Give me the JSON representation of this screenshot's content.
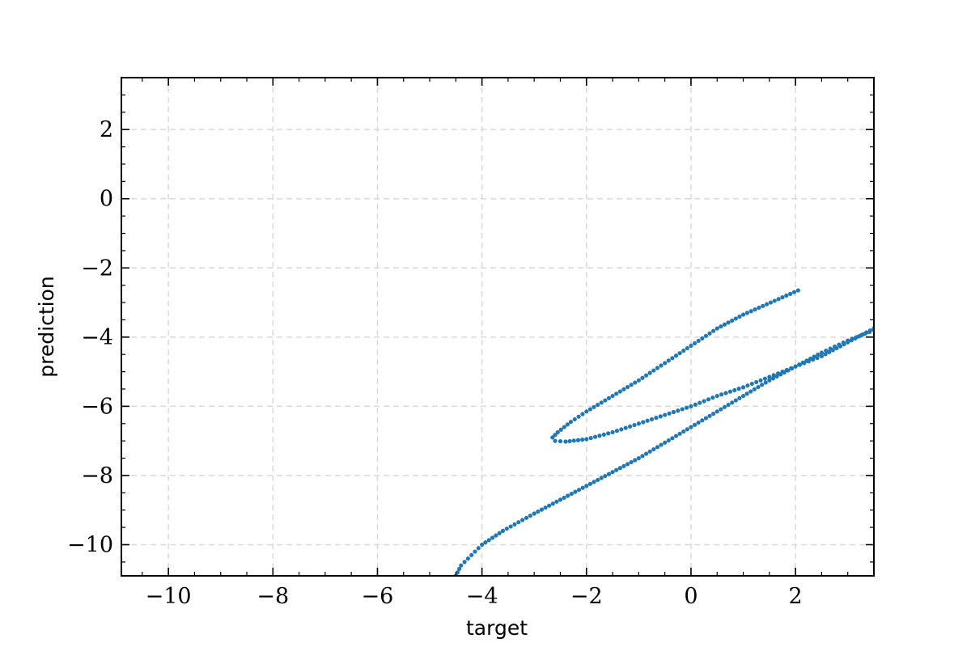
{
  "chart_data": {
    "type": "scatter",
    "title": "",
    "xlabel": "target",
    "ylabel": "prediction",
    "xlim": [
      -10.9,
      3.5
    ],
    "ylim": [
      -10.9,
      3.5
    ],
    "grid": true,
    "xticks": [
      -10,
      -8,
      -6,
      -4,
      -2,
      0,
      2
    ],
    "yticks": [
      -10,
      -8,
      -6,
      -4,
      -2,
      0,
      2
    ],
    "tick_labels_x": [
      "−10",
      "−8",
      "−6",
      "−4",
      "−2",
      "0",
      "2"
    ],
    "tick_labels_y": [
      "−10",
      "−8",
      "−6",
      "−4",
      "−2",
      "0",
      "2"
    ],
    "color": "#1f77b4",
    "series": [
      {
        "x": [
          2.05,
          1.6,
          1.0,
          0.5,
          0.0,
          -0.5,
          -1.0,
          -1.5,
          -2.0,
          -2.3,
          -2.55,
          -2.65,
          -2.6,
          -2.4,
          -2.0,
          -1.5,
          -1.0,
          -0.5,
          0.0,
          0.5,
          1.0,
          1.5,
          2.0,
          2.5,
          3.0,
          3.5
        ],
        "y": [
          -2.65,
          -2.95,
          -3.35,
          -3.75,
          -4.25,
          -4.75,
          -5.25,
          -5.7,
          -6.15,
          -6.45,
          -6.75,
          -6.9,
          -7.0,
          -7.02,
          -6.95,
          -6.75,
          -6.5,
          -6.25,
          -6.0,
          -5.7,
          -5.45,
          -5.15,
          -4.85,
          -4.55,
          -4.15,
          -3.75
        ]
      },
      {
        "x": [
          -4.5,
          -4.4,
          -4.2,
          -4.0,
          -3.6,
          -3.0,
          -2.5,
          -2.0,
          -1.5,
          -1.0,
          -0.5,
          0.0,
          0.5,
          1.0,
          1.5,
          2.0,
          2.5,
          3.0,
          3.5
        ],
        "y": [
          -10.9,
          -10.6,
          -10.3,
          -10.0,
          -9.6,
          -9.1,
          -8.7,
          -8.3,
          -7.9,
          -7.5,
          -7.05,
          -6.6,
          -6.15,
          -5.7,
          -5.25,
          -4.85,
          -4.45,
          -4.1,
          -3.8
        ]
      }
    ]
  }
}
